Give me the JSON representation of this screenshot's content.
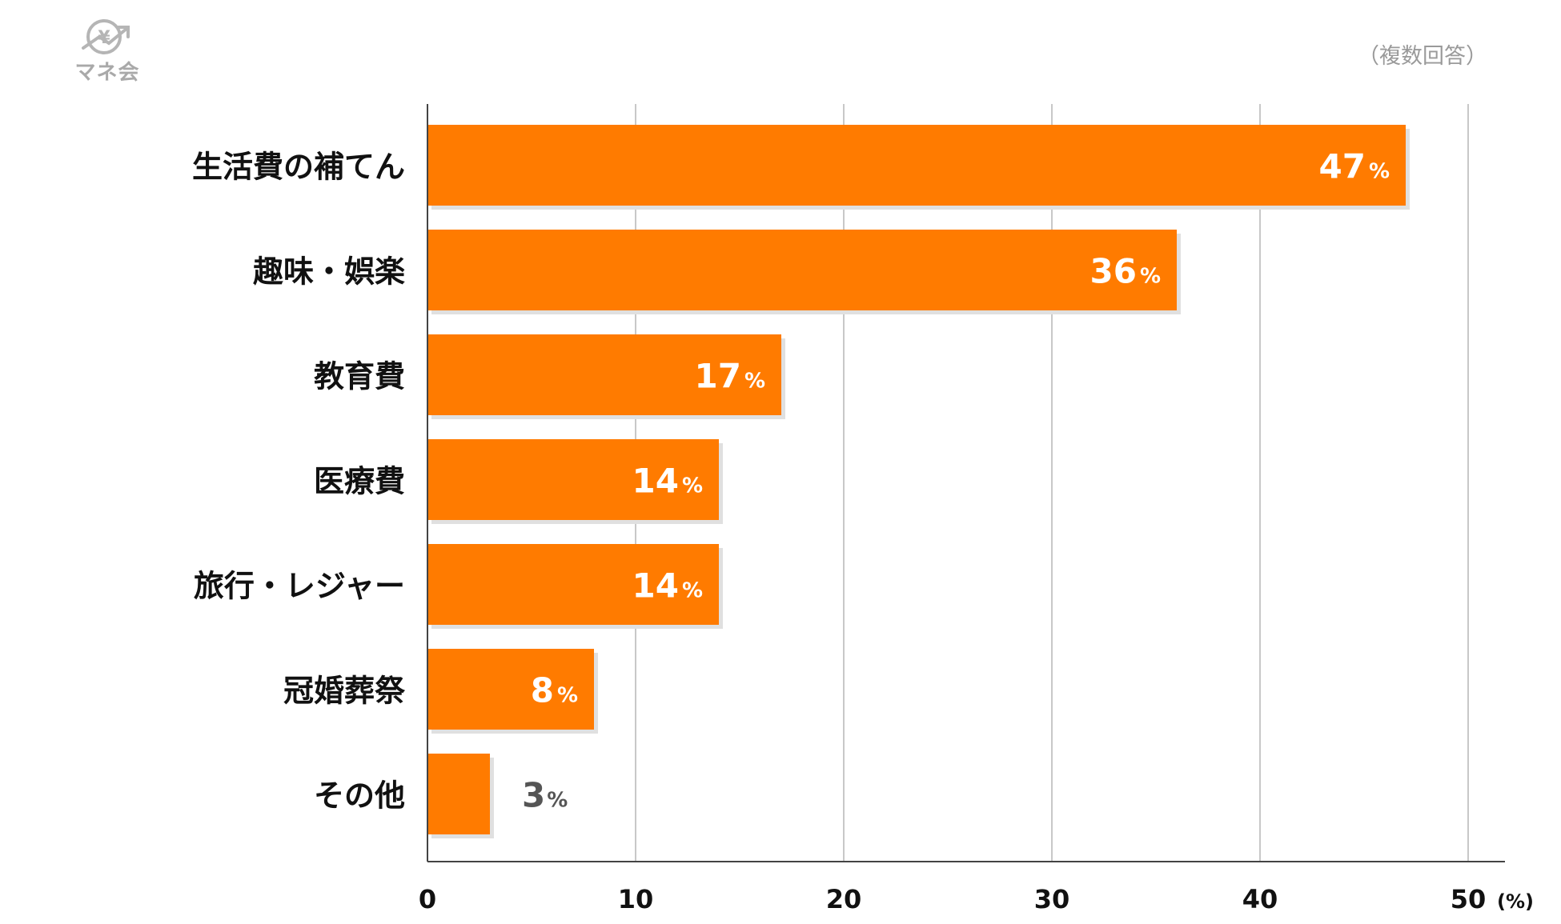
{
  "logo": {
    "name": "マネ会"
  },
  "note": "（複数回答）",
  "colors": {
    "bar": "#ff7b00",
    "shadow": "#e0e0e0",
    "grid": "#c8c8c8",
    "axis": "#444444",
    "inside_label": "#ffffff",
    "outside_label": "#555555"
  },
  "chart_data": {
    "type": "bar",
    "orientation": "horizontal",
    "categories": [
      "生活費の補てん",
      "趣味・娯楽",
      "教育費",
      "医療費",
      "旅行・レジャー",
      "冠婚葬祭",
      "その他"
    ],
    "values": [
      47,
      36,
      17,
      14,
      14,
      8,
      3
    ],
    "data_labels": [
      "47",
      "36",
      "17",
      "14",
      "14",
      "8",
      "3"
    ],
    "label_unit": "%",
    "xlim": [
      0,
      50
    ],
    "xticks": [
      0,
      10,
      20,
      30,
      40,
      50
    ],
    "xtick_labels": [
      "0",
      "10",
      "20",
      "30",
      "40",
      "50"
    ],
    "x_unit_label": "(%)",
    "grid": true
  }
}
